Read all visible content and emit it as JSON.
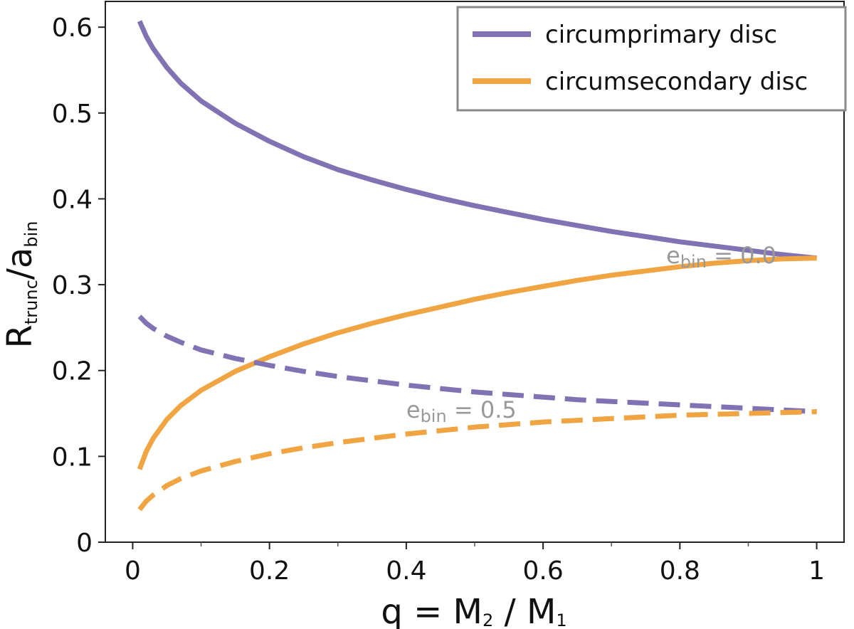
{
  "chart_data": {
    "type": "line",
    "title": "",
    "xlabel": {
      "main": "q = M",
      "sub1": "2",
      "mid": " / M",
      "sub2": "1"
    },
    "ylabel": {
      "main": "R",
      "sub1": "trunc",
      "mid": "/a",
      "sub2": "bin"
    },
    "xlim": [
      -0.04,
      1.04
    ],
    "ylim": [
      0,
      0.6
    ],
    "x_ticks": [
      0,
      0.2,
      0.4,
      0.6,
      0.8,
      1
    ],
    "x_tick_labels": [
      "0",
      "0.2",
      "0.4",
      "0.6",
      "0.8",
      "1"
    ],
    "x_minor_ticks": [
      0.1,
      0.3,
      0.5,
      0.7,
      0.9
    ],
    "y_ticks": [
      0,
      0.1,
      0.2,
      0.3,
      0.4,
      0.5,
      0.6
    ],
    "y_tick_labels": [
      "0",
      "0.1",
      "0.2",
      "0.3",
      "0.4",
      "0.5",
      "0.6"
    ],
    "grid": false,
    "legend": {
      "position": "top-right",
      "entries": [
        {
          "label": "circumprimary disc",
          "color": "#8172b3"
        },
        {
          "label": "circumsecondary disc",
          "color": "#f0a442"
        }
      ]
    },
    "annotations": [
      {
        "main": "e",
        "sub": "bin",
        "rest": " = 0.0",
        "x": 0.78,
        "y": 0.325,
        "color": "#999999"
      },
      {
        "main": "e",
        "sub": "bin",
        "rest": " = 0.5",
        "x": 0.4,
        "y": 0.145,
        "color": "#999999"
      }
    ],
    "series": [
      {
        "name": "circumprimary disc, e_bin = 0.0",
        "color": "#8172b3",
        "style": "solid",
        "x": [
          0.01,
          0.02,
          0.03,
          0.05,
          0.07,
          0.1,
          0.15,
          0.2,
          0.25,
          0.3,
          0.35,
          0.4,
          0.45,
          0.5,
          0.55,
          0.6,
          0.65,
          0.7,
          0.75,
          0.8,
          0.85,
          0.9,
          0.95,
          1.0
        ],
        "y": [
          0.607,
          0.589,
          0.575,
          0.553,
          0.535,
          0.514,
          0.488,
          0.467,
          0.449,
          0.434,
          0.422,
          0.411,
          0.401,
          0.392,
          0.384,
          0.376,
          0.369,
          0.362,
          0.356,
          0.35,
          0.345,
          0.34,
          0.335,
          0.331
        ]
      },
      {
        "name": "circumsecondary disc, e_bin = 0.0",
        "color": "#f0a442",
        "style": "solid",
        "x": [
          0.01,
          0.02,
          0.03,
          0.05,
          0.07,
          0.1,
          0.15,
          0.2,
          0.25,
          0.3,
          0.35,
          0.4,
          0.45,
          0.5,
          0.55,
          0.6,
          0.65,
          0.7,
          0.75,
          0.8,
          0.85,
          0.9,
          0.95,
          1.0
        ],
        "y": [
          0.085,
          0.106,
          0.121,
          0.143,
          0.159,
          0.177,
          0.199,
          0.216,
          0.231,
          0.244,
          0.255,
          0.265,
          0.274,
          0.283,
          0.291,
          0.298,
          0.305,
          0.311,
          0.316,
          0.321,
          0.325,
          0.328,
          0.33,
          0.331
        ]
      },
      {
        "name": "circumprimary disc, e_bin = 0.5",
        "color": "#8172b3",
        "style": "dashed",
        "x": [
          0.01,
          0.02,
          0.03,
          0.05,
          0.07,
          0.1,
          0.15,
          0.2,
          0.25,
          0.3,
          0.35,
          0.4,
          0.45,
          0.5,
          0.55,
          0.6,
          0.65,
          0.7,
          0.75,
          0.8,
          0.85,
          0.9,
          0.95,
          1.0
        ],
        "y": [
          0.263,
          0.255,
          0.249,
          0.24,
          0.233,
          0.224,
          0.214,
          0.206,
          0.199,
          0.193,
          0.188,
          0.183,
          0.179,
          0.175,
          0.172,
          0.169,
          0.166,
          0.164,
          0.162,
          0.16,
          0.158,
          0.156,
          0.154,
          0.152
        ]
      },
      {
        "name": "circumsecondary disc, e_bin = 0.5",
        "color": "#f0a442",
        "style": "dashed",
        "x": [
          0.01,
          0.02,
          0.03,
          0.05,
          0.07,
          0.1,
          0.15,
          0.2,
          0.25,
          0.3,
          0.35,
          0.4,
          0.45,
          0.5,
          0.55,
          0.6,
          0.65,
          0.7,
          0.75,
          0.8,
          0.85,
          0.9,
          0.95,
          1.0
        ],
        "y": [
          0.038,
          0.048,
          0.055,
          0.066,
          0.074,
          0.083,
          0.094,
          0.103,
          0.11,
          0.116,
          0.121,
          0.126,
          0.13,
          0.134,
          0.137,
          0.14,
          0.142,
          0.144,
          0.146,
          0.148,
          0.149,
          0.15,
          0.151,
          0.152
        ]
      }
    ]
  }
}
